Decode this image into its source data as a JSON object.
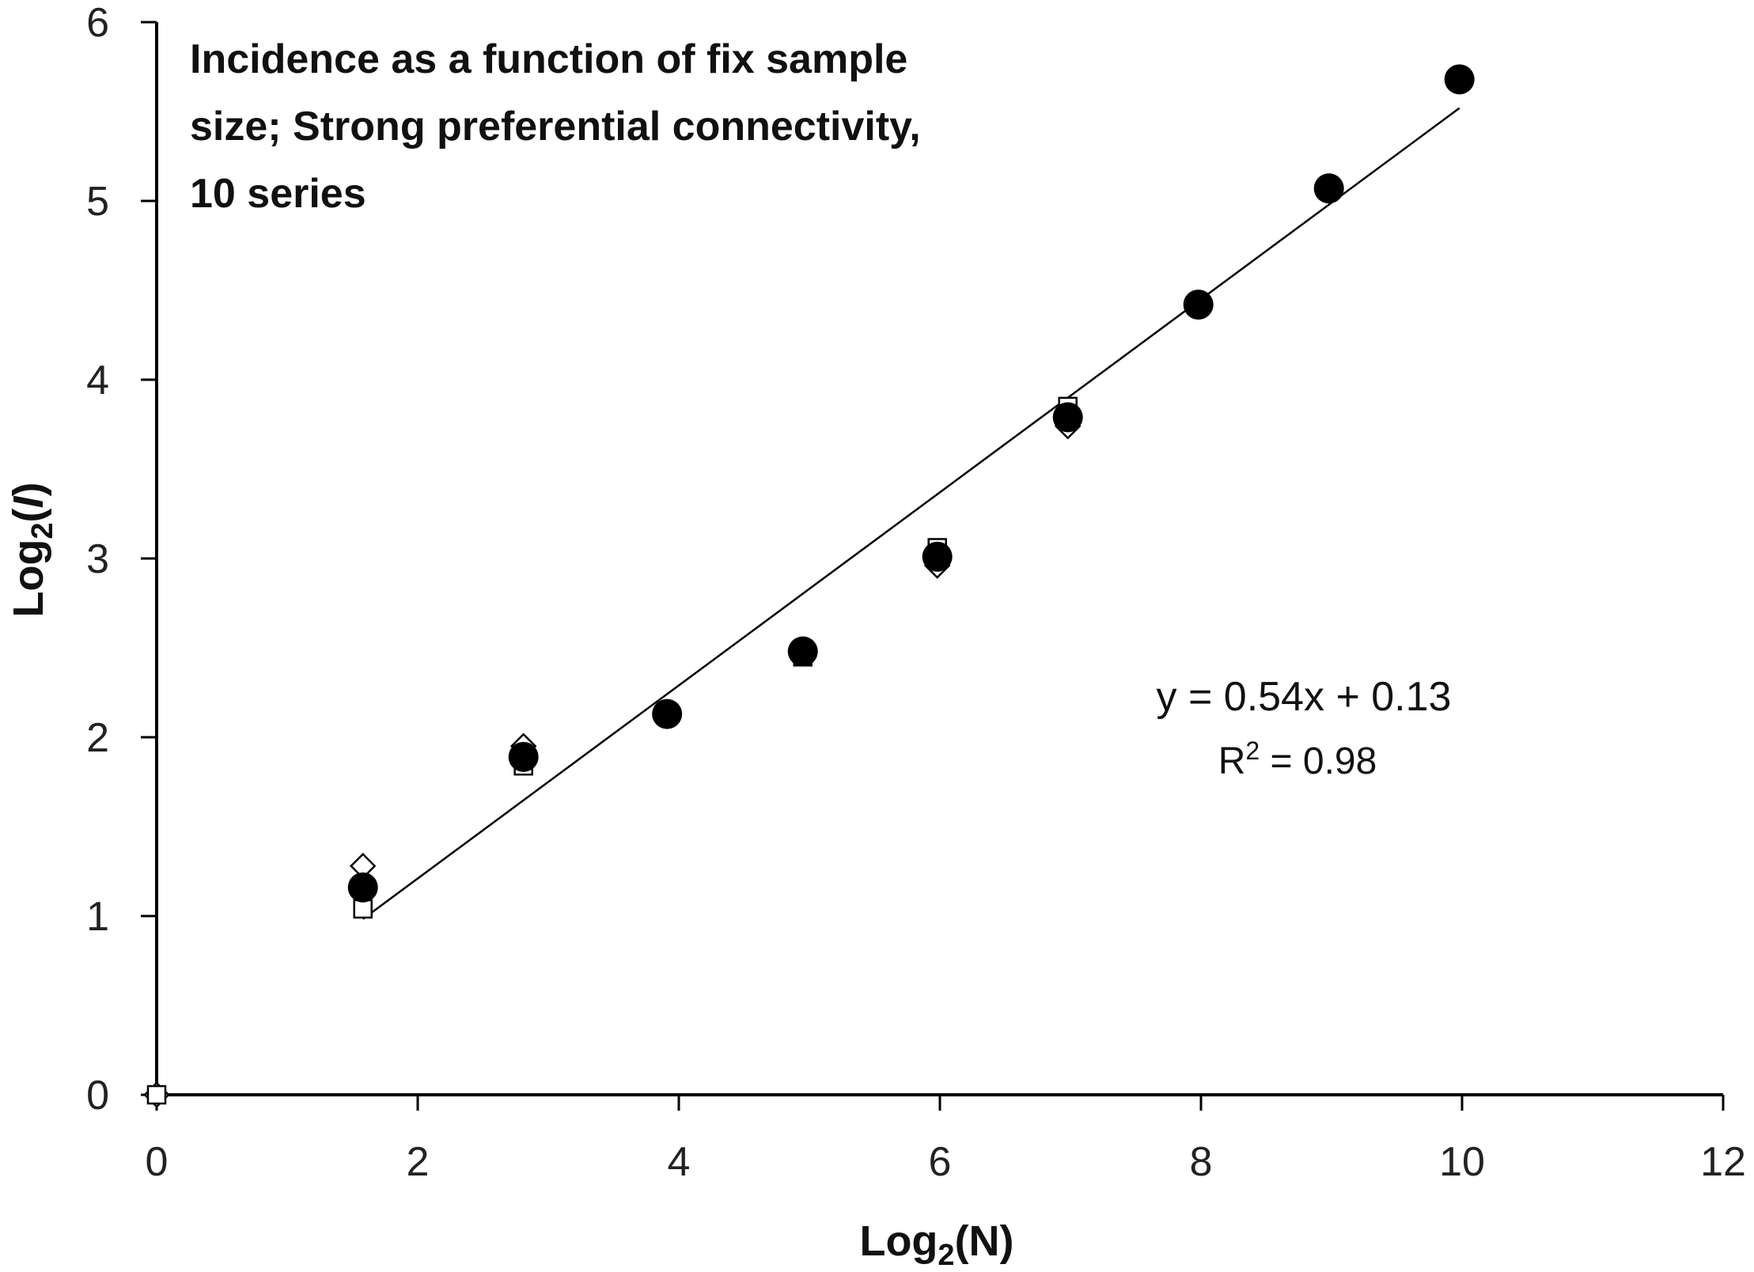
{
  "chart_data": {
    "type": "scatter",
    "title_lines": [
      "Incidence as a function of fix sample",
      "size; Strong preferential connectivity,",
      "10 series"
    ],
    "xlabel": {
      "main": "Log",
      "sub": "2",
      "rest": "(N)"
    },
    "ylabel": {
      "main": "Log",
      "sub": "2",
      "rest_open": "(",
      "italic": "I",
      "rest_close": ")"
    },
    "xlim": [
      0,
      12
    ],
    "ylim": [
      0,
      6
    ],
    "xticks": [
      "0",
      "2",
      "4",
      "6",
      "8",
      "10",
      "12"
    ],
    "yticks": [
      "0",
      "1",
      "2",
      "3",
      "4",
      "5",
      "6"
    ],
    "grid": false,
    "series": [
      {
        "marker": "diamond-open",
        "x": [
          0,
          1.58,
          2.81,
          3.91,
          4.95,
          5.98,
          6.98,
          7.98,
          8.98,
          9.98
        ],
        "y": [
          0,
          1.28,
          1.95,
          2.13,
          2.47,
          2.96,
          3.74,
          4.42,
          5.07,
          5.68
        ]
      },
      {
        "marker": "square-open",
        "x": [
          0,
          1.58,
          2.81,
          3.91,
          4.95,
          5.98,
          6.98,
          7.98,
          8.98,
          9.98
        ],
        "y": [
          0,
          1.04,
          1.84,
          2.13,
          2.45,
          3.06,
          3.85,
          4.42,
          5.07,
          5.68
        ]
      },
      {
        "marker": "circle-filled",
        "x": [
          1.58,
          2.81,
          3.91,
          4.95,
          5.98,
          6.98,
          7.98,
          8.98,
          9.98
        ],
        "y": [
          1.16,
          1.89,
          2.13,
          2.48,
          3.01,
          3.79,
          4.42,
          5.07,
          5.68
        ]
      }
    ],
    "trendline": {
      "x_start": 1.58,
      "x_end": 9.98,
      "slope": 0.54,
      "intercept": 0.13
    },
    "equation": "y = 0.54x + 0.13",
    "r2": {
      "main": "R",
      "sup": "2",
      "rest": " = 0.98"
    }
  }
}
